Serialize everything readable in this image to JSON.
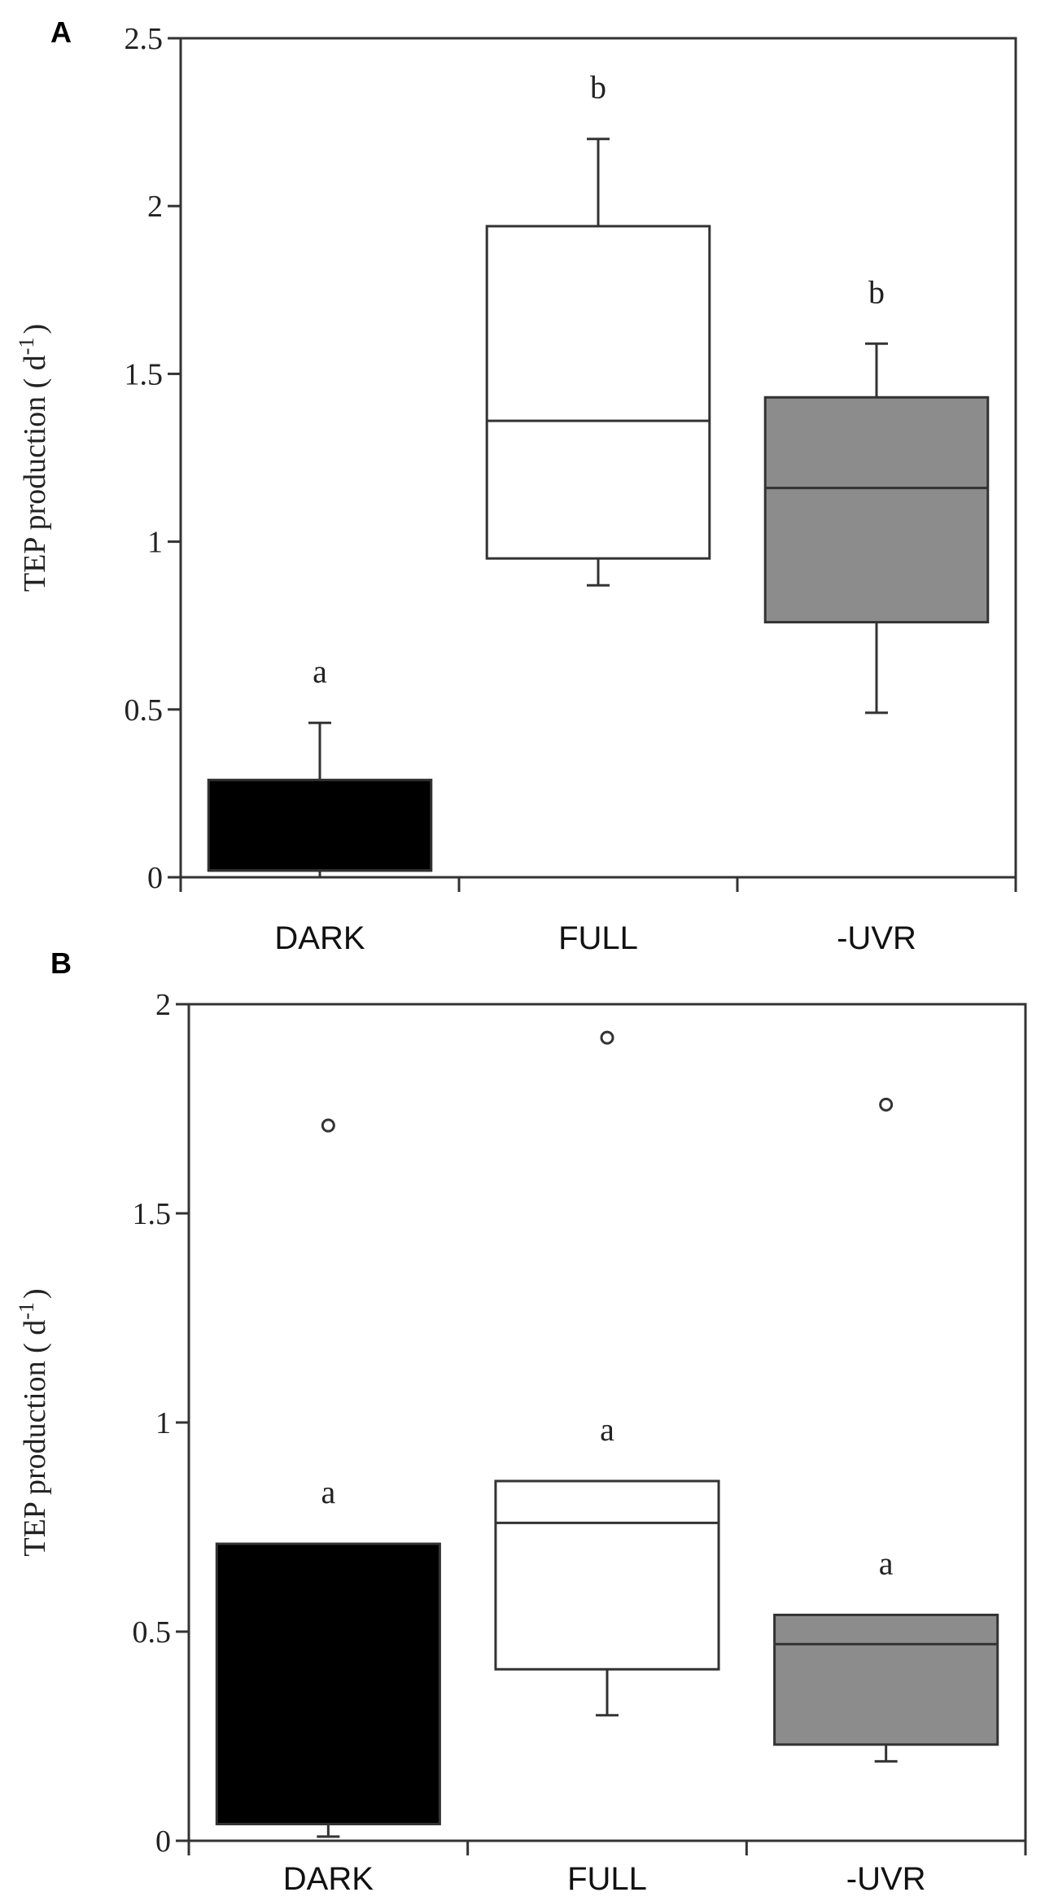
{
  "chart_data": [
    {
      "type": "box",
      "panel": "A",
      "ylabel": "TEP production ( d",
      "ylabel_sup": "-1",
      "ylabel_close": ")",
      "ylim": [
        0,
        2.5
      ],
      "yticks": [
        0,
        0.5,
        1,
        1.5,
        2,
        2.5
      ],
      "ytick_labels": [
        "0",
        "0.5",
        "1",
        "1.5",
        "2",
        "2.5"
      ],
      "grid": false,
      "categories": [
        "DARK",
        "FULL",
        "-UVR"
      ],
      "boxes": [
        {
          "category": "DARK",
          "fill": "#000000",
          "whisker_low": 0.0,
          "q1": 0.02,
          "median": 0.02,
          "q3": 0.29,
          "whisker_high": 0.46,
          "outliers": [],
          "sig": "a"
        },
        {
          "category": "FULL",
          "fill": "#ffffff",
          "whisker_low": 0.87,
          "q1": 0.95,
          "median": 1.36,
          "q3": 1.94,
          "whisker_high": 2.2,
          "outliers": [],
          "sig": "b"
        },
        {
          "category": "-UVR",
          "fill": "#8c8c8c",
          "whisker_low": 0.49,
          "q1": 0.76,
          "median": 1.16,
          "q3": 1.43,
          "whisker_high": 1.59,
          "outliers": [],
          "sig": "b"
        }
      ]
    },
    {
      "type": "box",
      "panel": "B",
      "ylabel": "TEP production ( d",
      "ylabel_sup": "-1",
      "ylabel_close": ")",
      "ylim": [
        0,
        2
      ],
      "yticks": [
        0,
        0.5,
        1,
        1.5,
        2
      ],
      "ytick_labels": [
        "0",
        "0.5",
        "1",
        "1.5",
        "2"
      ],
      "grid": false,
      "categories": [
        "DARK",
        "FULL",
        "-UVR"
      ],
      "boxes": [
        {
          "category": "DARK",
          "fill": "#000000",
          "whisker_low": 0.01,
          "q1": 0.04,
          "median": 0.04,
          "q3": 0.71,
          "whisker_high": 0.71,
          "outliers": [
            1.71
          ],
          "sig": "a"
        },
        {
          "category": "FULL",
          "fill": "#ffffff",
          "whisker_low": 0.3,
          "q1": 0.41,
          "median": 0.76,
          "q3": 0.86,
          "whisker_high": 0.86,
          "outliers": [
            1.92
          ],
          "sig": "a"
        },
        {
          "category": "-UVR",
          "fill": "#8c8c8c",
          "whisker_low": 0.19,
          "q1": 0.23,
          "median": 0.47,
          "q3": 0.54,
          "whisker_high": 0.54,
          "outliers": [
            1.76
          ],
          "sig": "a"
        }
      ]
    }
  ]
}
